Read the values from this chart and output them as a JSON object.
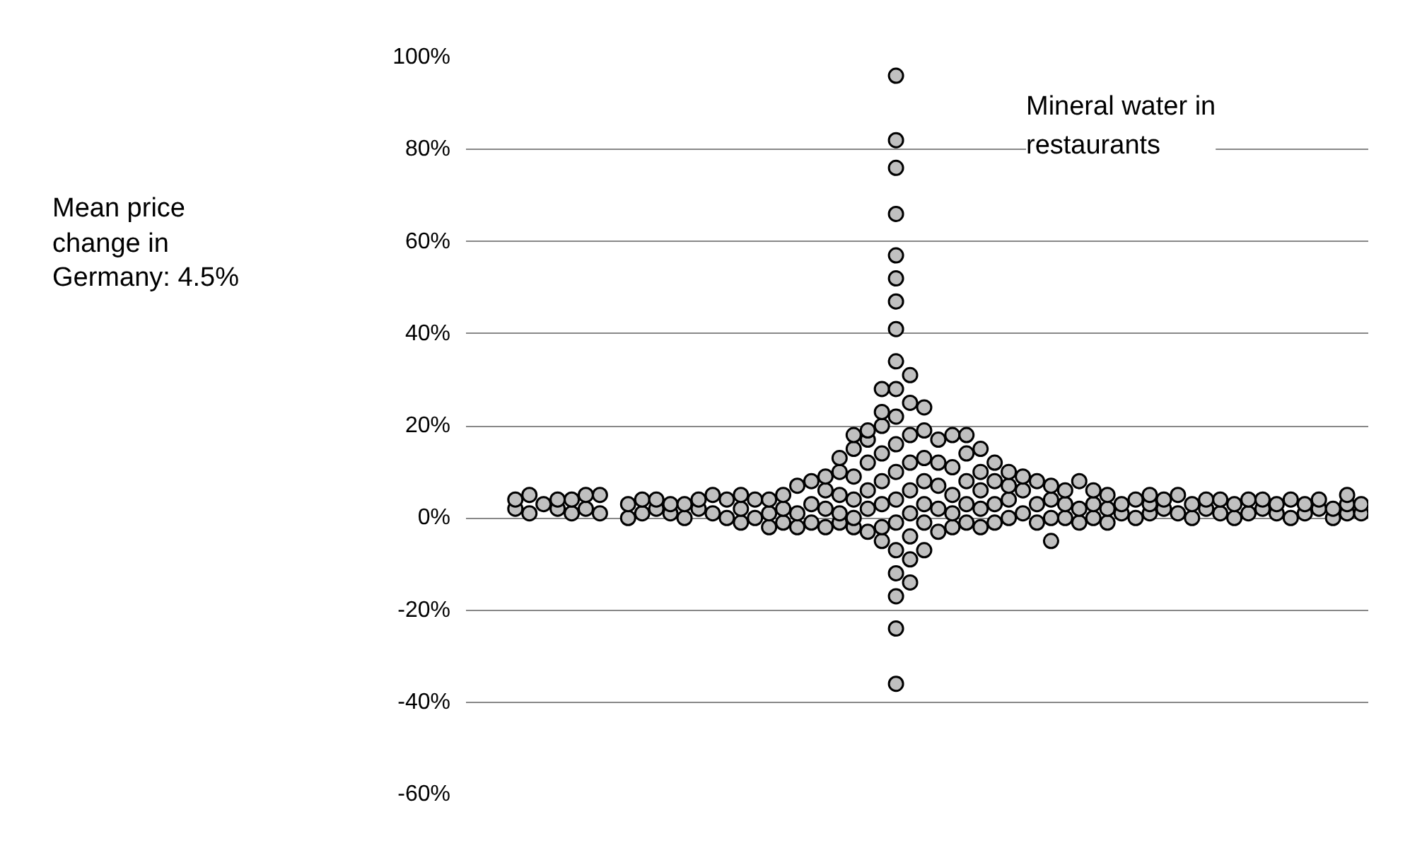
{
  "chart_data": {
    "type": "scatter",
    "categories": [
      null,
      null,
      null,
      null,
      null,
      null,
      null,
      null,
      null,
      null,
      null,
      null,
      null,
      null,
      null,
      null,
      null,
      null,
      null,
      null,
      null,
      null,
      null,
      null,
      null,
      null,
      null,
      null,
      null,
      null,
      null,
      null,
      null,
      null,
      null,
      null,
      null,
      null,
      null,
      null,
      null,
      null,
      null,
      null,
      null,
      null,
      null,
      null,
      null,
      null,
      null,
      null,
      null,
      null,
      null,
      null,
      null,
      null,
      null,
      null,
      null,
      null,
      null,
      null
    ],
    "series": [
      {
        "color": "#c0c0c0",
        "values": [
          null,
          null,
          null,
          2,
          1,
          3,
          2,
          1,
          2,
          1,
          null,
          0,
          1,
          2,
          1,
          0,
          2,
          1,
          0,
          -1,
          0,
          -2,
          -1,
          -2,
          -1,
          -2,
          -1,
          -2,
          -3,
          -5,
          -36,
          -14,
          -7,
          -3,
          -2,
          -1,
          -2,
          -1,
          0,
          1,
          -1,
          -5,
          0,
          -1,
          0,
          -1,
          1,
          0,
          1,
          2,
          1,
          0,
          2,
          1,
          0,
          1,
          2,
          1,
          0,
          1,
          2,
          0,
          1,
          1
        ]
      },
      {
        "color": "#c0c0c0",
        "values": [
          null,
          null,
          null,
          4,
          5,
          null,
          4,
          4,
          5,
          5,
          null,
          3,
          4,
          4,
          3,
          3,
          4,
          5,
          4,
          2,
          4,
          1,
          2,
          1,
          3,
          2,
          1,
          0,
          2,
          -2,
          -24,
          -9,
          -1,
          2,
          1,
          3,
          2,
          3,
          4,
          6,
          3,
          0,
          3,
          2,
          3,
          2,
          3,
          4,
          3,
          4,
          5,
          3,
          4,
          4,
          3,
          4,
          4,
          3,
          4,
          3,
          4,
          2,
          3,
          3
        ]
      },
      {
        "color": "#c0c0c0",
        "values": [
          null,
          null,
          null,
          null,
          null,
          null,
          null,
          null,
          null,
          null,
          null,
          null,
          null,
          null,
          null,
          null,
          null,
          null,
          null,
          5,
          null,
          4,
          5,
          7,
          8,
          6,
          5,
          4,
          6,
          3,
          -17,
          -4,
          3,
          7,
          5,
          8,
          6,
          8,
          7,
          9,
          8,
          4,
          6,
          8,
          6,
          5,
          null,
          null,
          5,
          null,
          null,
          null,
          null,
          null,
          null,
          null,
          null,
          null,
          null,
          null,
          null,
          null,
          5,
          null
        ]
      },
      {
        "color": "#c0c0c0",
        "values": [
          null,
          null,
          null,
          null,
          null,
          null,
          null,
          null,
          null,
          null,
          null,
          null,
          null,
          null,
          null,
          null,
          null,
          null,
          null,
          null,
          null,
          null,
          null,
          null,
          null,
          9,
          10,
          9,
          12,
          8,
          -12,
          1,
          8,
          12,
          11,
          14,
          10,
          12,
          10,
          null,
          null,
          7,
          null,
          null,
          null,
          null,
          null,
          null,
          null,
          null,
          null,
          null,
          null,
          null,
          null,
          null,
          null,
          null,
          null,
          null,
          null,
          null,
          null,
          null
        ]
      },
      {
        "color": "#c0c0c0",
        "values": [
          null,
          null,
          null,
          null,
          null,
          null,
          null,
          null,
          null,
          null,
          null,
          null,
          null,
          null,
          null,
          null,
          null,
          null,
          null,
          null,
          null,
          null,
          null,
          null,
          null,
          null,
          13,
          15,
          17,
          14,
          -7,
          6,
          13,
          17,
          18,
          18,
          15,
          null,
          null,
          null,
          null,
          null,
          null,
          null,
          null,
          null,
          null,
          null,
          null,
          null,
          null,
          null,
          null,
          null,
          null,
          null,
          null,
          null,
          null,
          null,
          null,
          null,
          null,
          null
        ]
      },
      {
        "color": "#c0c0c0",
        "values": [
          null,
          null,
          null,
          null,
          null,
          null,
          null,
          null,
          null,
          null,
          null,
          null,
          null,
          null,
          null,
          null,
          null,
          null,
          null,
          null,
          null,
          null,
          null,
          null,
          null,
          null,
          null,
          18,
          19,
          20,
          -1,
          12,
          19,
          null,
          null,
          null,
          null,
          null,
          null,
          null,
          null,
          null,
          null,
          null,
          null,
          null,
          null,
          null,
          null,
          null,
          null,
          null,
          null,
          null,
          null,
          null,
          null,
          null,
          null,
          null,
          null,
          null,
          null,
          null
        ]
      },
      {
        "color": "#c0c0c0",
        "values": [
          null,
          null,
          null,
          null,
          null,
          null,
          null,
          null,
          null,
          null,
          null,
          null,
          null,
          null,
          null,
          null,
          null,
          null,
          null,
          null,
          null,
          null,
          null,
          null,
          null,
          null,
          null,
          null,
          null,
          23,
          4,
          18,
          24,
          null,
          null,
          null,
          null,
          null,
          null,
          null,
          null,
          null,
          null,
          null,
          null,
          null,
          null,
          null,
          null,
          null,
          null,
          null,
          null,
          null,
          null,
          null,
          null,
          null,
          null,
          null,
          null,
          null,
          null,
          null
        ]
      },
      {
        "color": "#c0c0c0",
        "values": [
          null,
          null,
          null,
          null,
          null,
          null,
          null,
          null,
          null,
          null,
          null,
          null,
          null,
          null,
          null,
          null,
          null,
          null,
          null,
          null,
          null,
          null,
          null,
          null,
          null,
          null,
          null,
          null,
          null,
          28,
          10,
          25,
          null,
          null,
          null,
          null,
          null,
          null,
          null,
          null,
          null,
          null,
          null,
          null,
          null,
          null,
          null,
          null,
          null,
          null,
          null,
          null,
          null,
          null,
          null,
          null,
          null,
          null,
          null,
          null,
          null,
          null,
          null,
          null
        ]
      },
      {
        "color": "#c0c0c0",
        "values": [
          null,
          null,
          null,
          null,
          null,
          null,
          null,
          null,
          null,
          null,
          null,
          null,
          null,
          null,
          null,
          null,
          null,
          null,
          null,
          null,
          null,
          null,
          null,
          null,
          null,
          null,
          null,
          null,
          null,
          null,
          16,
          31,
          null,
          null,
          null,
          null,
          null,
          null,
          null,
          null,
          null,
          null,
          null,
          null,
          null,
          null,
          null,
          null,
          null,
          null,
          null,
          null,
          null,
          null,
          null,
          null,
          null,
          null,
          null,
          null,
          null,
          null,
          null,
          null
        ]
      },
      {
        "color": "#c0c0c0",
        "values": [
          null,
          null,
          null,
          null,
          null,
          null,
          null,
          null,
          null,
          null,
          null,
          null,
          null,
          null,
          null,
          null,
          null,
          null,
          null,
          null,
          null,
          null,
          null,
          null,
          null,
          null,
          null,
          null,
          null,
          null,
          22,
          null,
          null,
          null,
          null,
          null,
          null,
          null,
          null,
          null,
          null,
          null,
          null,
          null,
          null,
          null,
          null,
          null,
          null,
          null,
          null,
          null,
          null,
          null,
          null,
          null,
          null,
          null,
          null,
          null,
          null,
          null,
          null,
          null
        ]
      },
      {
        "color": "#c0c0c0",
        "values": [
          null,
          null,
          null,
          null,
          null,
          null,
          null,
          null,
          null,
          null,
          null,
          null,
          null,
          null,
          null,
          null,
          null,
          null,
          null,
          null,
          null,
          null,
          null,
          null,
          null,
          null,
          null,
          null,
          null,
          null,
          28,
          null,
          null,
          null,
          null,
          null,
          null,
          null,
          null,
          null,
          null,
          null,
          null,
          null,
          null,
          null,
          null,
          null,
          null,
          null,
          null,
          null,
          null,
          null,
          null,
          null,
          null,
          null,
          null,
          null,
          null,
          null,
          null,
          null
        ]
      },
      {
        "color": "#c0c0c0",
        "values": [
          null,
          null,
          null,
          null,
          null,
          null,
          null,
          null,
          null,
          null,
          null,
          null,
          null,
          null,
          null,
          null,
          null,
          null,
          null,
          null,
          null,
          null,
          null,
          null,
          null,
          null,
          null,
          null,
          null,
          null,
          34,
          null,
          null,
          null,
          null,
          null,
          null,
          null,
          null,
          null,
          null,
          null,
          null,
          null,
          null,
          null,
          null,
          null,
          null,
          null,
          null,
          null,
          null,
          null,
          null,
          null,
          null,
          null,
          null,
          null,
          null,
          null,
          null,
          null
        ]
      },
      {
        "color": "#c0c0c0",
        "values": [
          null,
          null,
          null,
          null,
          null,
          null,
          null,
          null,
          null,
          null,
          null,
          null,
          null,
          null,
          null,
          null,
          null,
          null,
          null,
          null,
          null,
          null,
          null,
          null,
          null,
          null,
          null,
          null,
          null,
          null,
          41,
          null,
          null,
          null,
          null,
          null,
          null,
          null,
          null,
          null,
          null,
          null,
          null,
          null,
          null,
          null,
          null,
          null,
          null,
          null,
          null,
          null,
          null,
          null,
          null,
          null,
          null,
          null,
          null,
          null,
          null,
          null,
          null,
          null
        ]
      },
      {
        "color": "#c0c0c0",
        "values": [
          null,
          null,
          null,
          null,
          null,
          null,
          null,
          null,
          null,
          null,
          null,
          null,
          null,
          null,
          null,
          null,
          null,
          null,
          null,
          null,
          null,
          null,
          null,
          null,
          null,
          null,
          null,
          null,
          null,
          null,
          47,
          null,
          null,
          null,
          null,
          null,
          null,
          null,
          null,
          null,
          null,
          null,
          null,
          null,
          null,
          null,
          null,
          null,
          null,
          null,
          null,
          null,
          null,
          null,
          null,
          null,
          null,
          null,
          null,
          null,
          null,
          null,
          null,
          null
        ]
      },
      {
        "color": "#c0c0c0",
        "values": [
          null,
          null,
          null,
          null,
          null,
          null,
          null,
          null,
          null,
          null,
          null,
          null,
          null,
          null,
          null,
          null,
          null,
          null,
          null,
          null,
          null,
          null,
          null,
          null,
          null,
          null,
          null,
          null,
          null,
          null,
          52,
          null,
          null,
          null,
          null,
          null,
          null,
          null,
          null,
          null,
          null,
          null,
          null,
          null,
          null,
          null,
          null,
          null,
          null,
          null,
          null,
          null,
          null,
          null,
          null,
          null,
          null,
          null,
          null,
          null,
          null,
          null,
          null,
          null
        ]
      },
      {
        "color": "#c0c0c0",
        "values": [
          null,
          null,
          null,
          null,
          null,
          null,
          null,
          null,
          null,
          null,
          null,
          null,
          null,
          null,
          null,
          null,
          null,
          null,
          null,
          null,
          null,
          null,
          null,
          null,
          null,
          null,
          null,
          null,
          null,
          null,
          57,
          null,
          null,
          null,
          null,
          null,
          null,
          null,
          null,
          null,
          null,
          null,
          null,
          null,
          null,
          null,
          null,
          null,
          null,
          null,
          null,
          null,
          null,
          null,
          null,
          null,
          null,
          null,
          null,
          null,
          null,
          null,
          null,
          null
        ]
      },
      {
        "color": "#c0c0c0",
        "values": [
          null,
          null,
          null,
          null,
          null,
          null,
          null,
          null,
          null,
          null,
          null,
          null,
          null,
          null,
          null,
          null,
          null,
          null,
          null,
          null,
          null,
          null,
          null,
          null,
          null,
          null,
          null,
          null,
          null,
          null,
          66,
          null,
          null,
          null,
          null,
          null,
          null,
          null,
          null,
          null,
          null,
          null,
          null,
          null,
          null,
          null,
          null,
          null,
          null,
          null,
          null,
          null,
          null,
          null,
          null,
          null,
          null,
          null,
          null,
          null,
          null,
          null,
          null,
          null
        ]
      },
      {
        "color": "#c0c0c0",
        "values": [
          null,
          null,
          null,
          null,
          null,
          null,
          null,
          null,
          null,
          null,
          null,
          null,
          null,
          null,
          null,
          null,
          null,
          null,
          null,
          null,
          null,
          null,
          null,
          null,
          null,
          null,
          null,
          null,
          null,
          null,
          76,
          null,
          null,
          null,
          null,
          null,
          null,
          null,
          null,
          null,
          null,
          null,
          null,
          null,
          null,
          null,
          null,
          null,
          null,
          null,
          null,
          null,
          null,
          null,
          null,
          null,
          null,
          null,
          null,
          null,
          null,
          null,
          null,
          null
        ]
      },
      {
        "color": "#c0c0c0",
        "values": [
          null,
          null,
          null,
          null,
          null,
          null,
          null,
          null,
          null,
          null,
          null,
          null,
          null,
          null,
          null,
          null,
          null,
          null,
          null,
          null,
          null,
          null,
          null,
          null,
          null,
          null,
          null,
          null,
          null,
          null,
          82,
          null,
          null,
          null,
          null,
          null,
          null,
          null,
          null,
          null,
          null,
          null,
          null,
          null,
          null,
          null,
          null,
          null,
          null,
          null,
          null,
          null,
          null,
          null,
          null,
          null,
          null,
          null,
          null,
          null,
          null,
          null,
          null,
          null
        ]
      },
      {
        "color": "#c0c0c0",
        "values": [
          null,
          null,
          null,
          null,
          null,
          null,
          null,
          null,
          null,
          null,
          null,
          null,
          null,
          null,
          null,
          null,
          null,
          null,
          null,
          null,
          null,
          null,
          null,
          null,
          null,
          null,
          null,
          null,
          null,
          null,
          96,
          null,
          null,
          null,
          null,
          null,
          null,
          null,
          null,
          null,
          null,
          null,
          null,
          null,
          null,
          null,
          null,
          null,
          null,
          null,
          null,
          null,
          null,
          null,
          null,
          null,
          null,
          null,
          null,
          null,
          null,
          null,
          null,
          null
        ]
      }
    ],
    "ylim": [
      -60,
      100
    ],
    "yticks": [
      {
        "value": -60,
        "label": "-60%"
      },
      {
        "value": -40,
        "label": "-40%"
      },
      {
        "value": -20,
        "label": "-20%"
      },
      {
        "value": 0,
        "label": "0%"
      },
      {
        "value": 20,
        "label": "20%"
      },
      {
        "value": 40,
        "label": "40%"
      },
      {
        "value": 60,
        "label": "60%"
      },
      {
        "value": 80,
        "label": "80%"
      },
      {
        "value": 100,
        "label": "100%"
      }
    ],
    "grid": "y",
    "tick_labels": "y",
    "marker": "circle",
    "annotations": [
      "Mean price change in Germany: 4.5%",
      "Mineral water in restaurants"
    ]
  }
}
